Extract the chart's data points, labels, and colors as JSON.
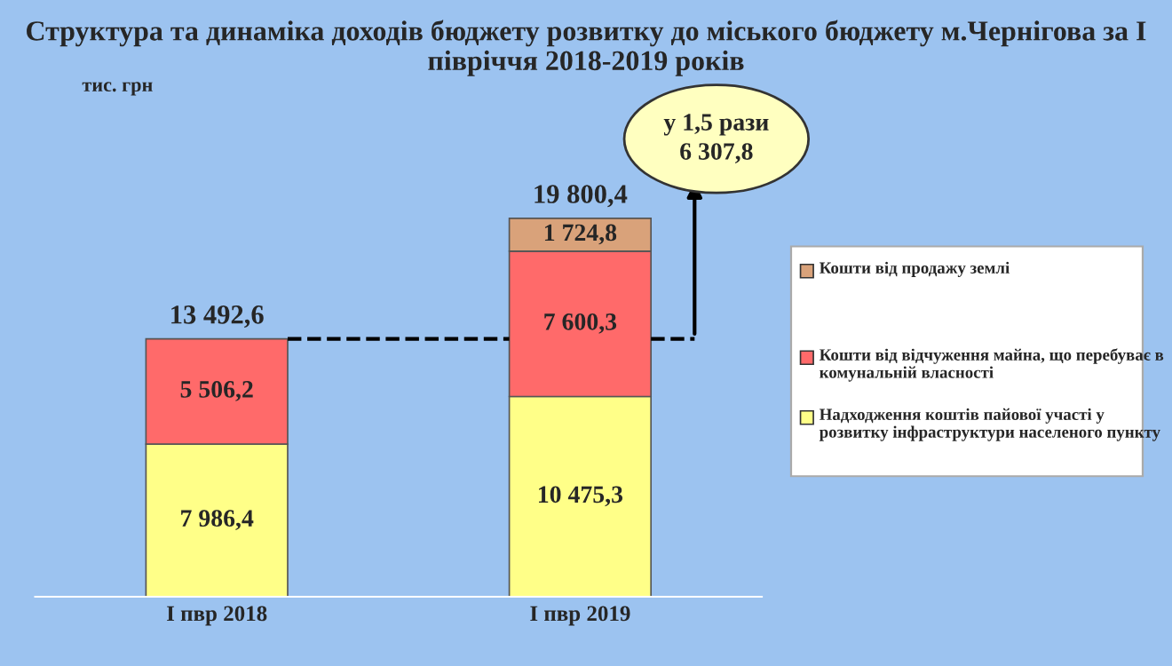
{
  "chart_data": {
    "type": "bar",
    "title": "Структура та динаміка доходів бюджету розвитку до міського бюджету м.Чернігова за І півріччя 2018-2019 років",
    "categories": [
      "І пвр 2018",
      "І пвр 2019"
    ],
    "stacked": true,
    "series": [
      {
        "name": "Надходження коштів пайової участі у розвитку інфраструктури населеного пункту",
        "color": "#ffff88",
        "values": [
          7986.4,
          10475.3
        ],
        "value_labels": [
          "7 986,4",
          "10 475,3"
        ]
      },
      {
        "name": "Кошти від відчуження майна, що перебуває в комунальній власності",
        "color": "#ff6a6a",
        "values": [
          5506.2,
          7600.3
        ],
        "value_labels": [
          "5 506,2",
          "7 600,3"
        ]
      },
      {
        "name": "Кошти від продажу землі",
        "color": "#d9a27a",
        "values": [
          null,
          1724.8
        ],
        "value_labels": [
          null,
          "1 724,8"
        ]
      }
    ],
    "totals": [
      "13 492,6",
      "19 800,4"
    ],
    "annotations": [
      "у 1,5 рази\n6 307,8",
      "тис. грн"
    ],
    "tick_labels": "x",
    "legend": "right"
  }
}
